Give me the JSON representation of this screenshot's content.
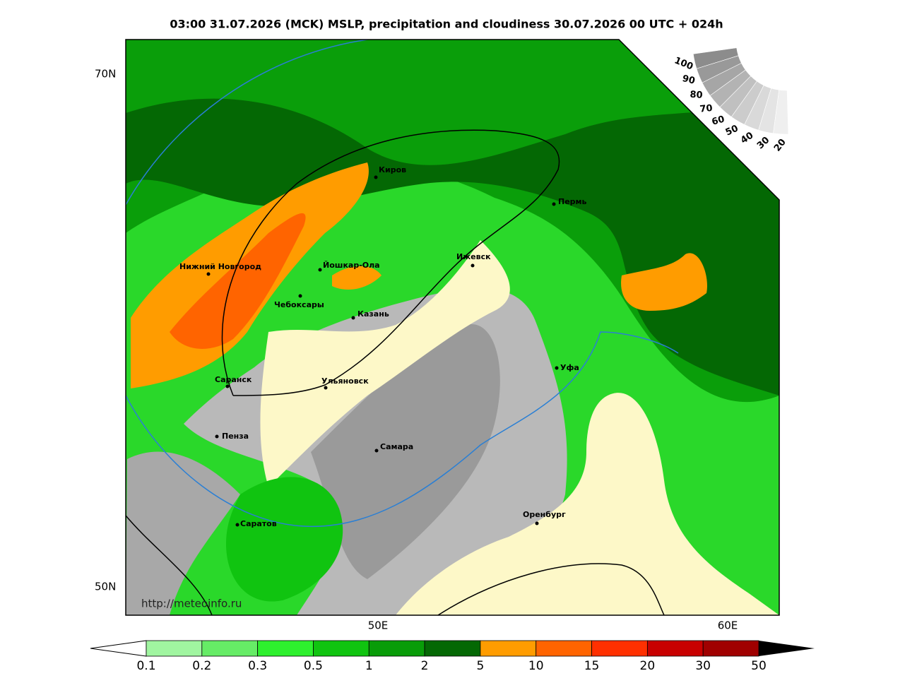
{
  "title": "03:00 31.07.2026 (MCK) MSLP, precipitation and cloudiness 30.07.2026 00 UTC + 024h",
  "lat_labels": [
    "70N",
    "50N"
  ],
  "lon_labels": [
    "50E",
    "60E"
  ],
  "source": "http://meteoinfo.ru",
  "cities": [
    "Киров",
    "Пермь",
    "Нижний Новгород",
    "Йошкар-Ола",
    "Ижевск",
    "Чебоксары",
    "Казань",
    "Уфа",
    "Саранск",
    "Ульяновск",
    "Пенза",
    "Самара",
    "Оренбург",
    "Саратов"
  ],
  "precip_scale": {
    "levels": [
      0.1,
      0.2,
      0.3,
      0.5,
      1,
      2,
      5,
      10,
      15,
      20,
      30,
      50
    ],
    "colors": [
      "#a0f5a0",
      "#66ec66",
      "#2ef02e",
      "#10c410",
      "#089c08",
      "#046804",
      "#ff9c00",
      "#ff6400",
      "#ff3000",
      "#c80000",
      "#a00000"
    ]
  },
  "cloud_scale": {
    "levels": [
      100,
      90,
      80,
      70,
      60,
      50,
      40,
      30,
      20
    ],
    "colors": [
      "#8c8c8c",
      "#999999",
      "#a6a6a6",
      "#b3b3b3",
      "#c0c0c0",
      "#cccccc",
      "#d9d9d9",
      "#e4e4e4",
      "#efefef"
    ]
  }
}
